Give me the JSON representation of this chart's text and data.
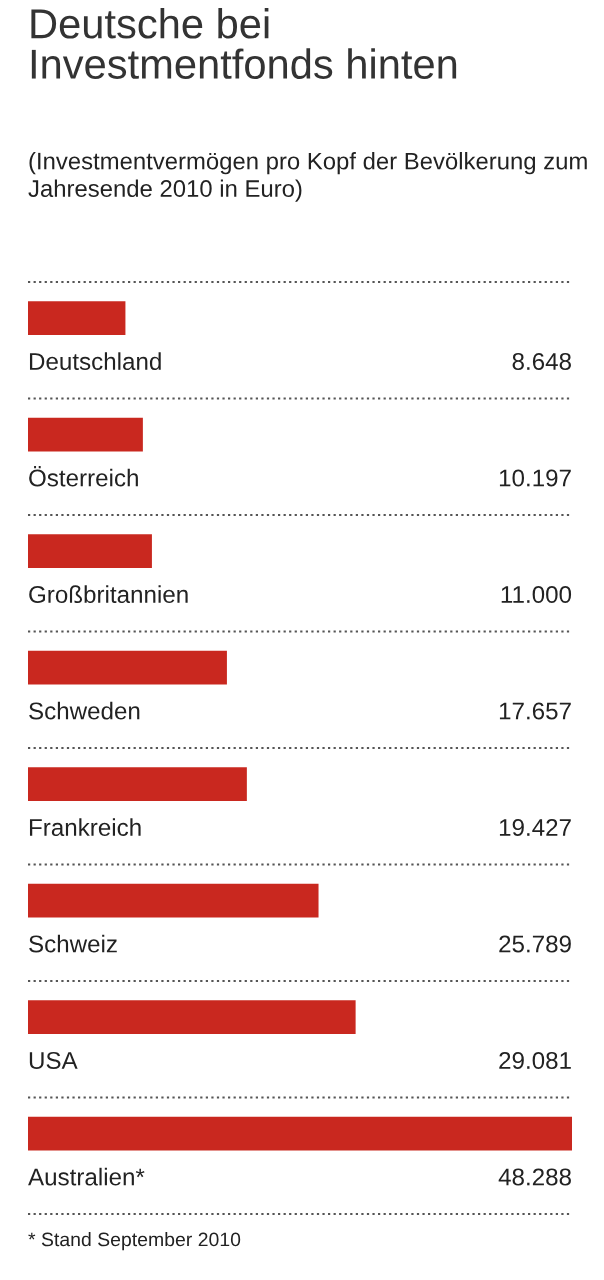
{
  "chart_data": {
    "type": "bar",
    "orientation": "horizontal",
    "title": "Deutsche bei\nInvestmentfonds hinten",
    "subtitle": "(Investmentvermögen pro Kopf der Bevölkerung zum Jahresende 2010 in Euro)",
    "categories": [
      "Deutschland",
      "Österreich",
      "Großbritannien",
      "Schweden",
      "Frankreich",
      "Schweiz",
      "USA",
      "Australien*"
    ],
    "values": [
      8648,
      10197,
      11000,
      17657,
      19427,
      25789,
      29081,
      48288
    ],
    "value_labels": [
      "8.648",
      "10.197",
      "11.000",
      "17.657",
      "19.427",
      "25.789",
      "29.081",
      "48.288"
    ],
    "color": "#c9281f",
    "xlim": [
      0,
      48288
    ],
    "grid": "y",
    "annotations": [
      "* Stand September 2010"
    ]
  }
}
